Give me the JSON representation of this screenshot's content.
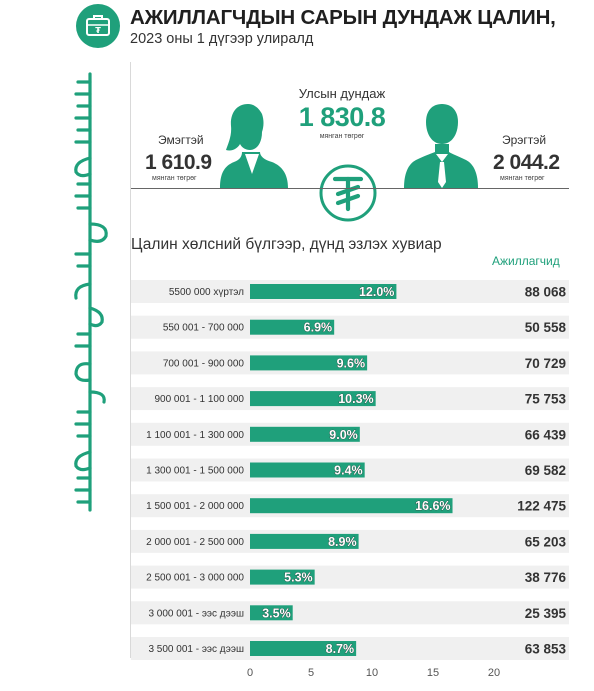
{
  "header": {
    "title": "АЖИЛЛАГЧДЫН САРЫН ДУНДАЖ ЦАЛИН,",
    "subtitle": "2023 оны 1 дүгээр улиралд",
    "icon": "briefcase-tugrik-icon"
  },
  "summary": {
    "national": {
      "label": "Улсын дундаж",
      "value": "1 830.8",
      "unit": "мянган төгрөг"
    },
    "female": {
      "label": "Эмэгтэй",
      "value": "1 610.9",
      "unit": "мянган төгрөг"
    },
    "male": {
      "label": "Эрэгтэй",
      "value": "2 044.2",
      "unit": "мянган төгрөг"
    }
  },
  "colors": {
    "accent": "#1fa07b",
    "row_band": "#f0f0f0",
    "text": "#333333"
  },
  "chart_data": {
    "type": "bar",
    "orientation": "horizontal",
    "title": "Цалин хөлсний бүлгээр, дүнд эзлэх хувиар",
    "right_column_title": "Ажиллагчид",
    "categories": [
      "5500 000 хүртэл",
      "550 001 - 700 000",
      "700 001 - 900 000",
      "900 001 - 1 100 000",
      "1 100 001 - 1 300 000",
      "1 300 001 - 1 500 000",
      "1 500 001 - 2 000 000",
      "2 000 001 - 2 500 000",
      "2 500 001 - 3 000 000",
      "3 000 001 - ээс дээш",
      "3 500 001 - ээс дээш"
    ],
    "values": [
      12.0,
      6.9,
      9.6,
      10.3,
      9.0,
      9.4,
      16.6,
      8.9,
      5.3,
      3.5,
      8.7
    ],
    "value_labels": [
      "12.0%",
      "6.9%",
      "9.6%",
      "10.3%",
      "9.0%",
      "9.4%",
      "16.6%",
      "8.9%",
      "5.3%",
      "3.5%",
      "8.7%"
    ],
    "workers": [
      "88 068",
      "50 558",
      "70 729",
      "75 753",
      "66 439",
      "69 582",
      "122 475",
      "65 203",
      "38 776",
      "25 395",
      "63 853"
    ],
    "xlim": [
      0,
      20
    ],
    "xticks": [
      0,
      5,
      10,
      15,
      20
    ],
    "grid": false,
    "legend": "none"
  }
}
